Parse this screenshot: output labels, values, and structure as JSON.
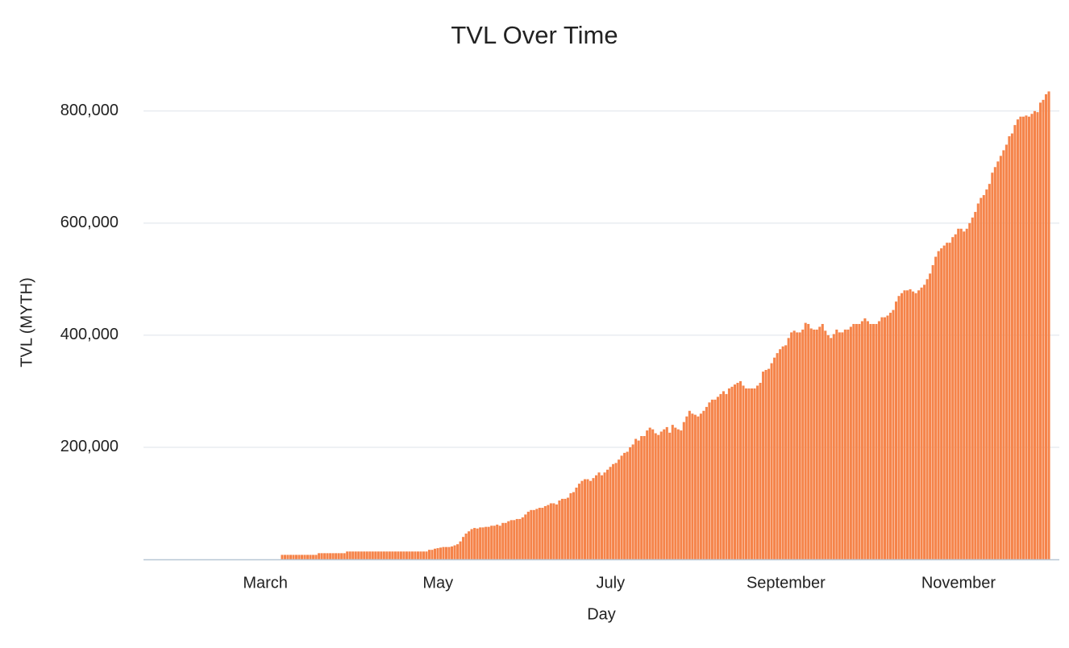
{
  "chart_data": {
    "type": "bar",
    "title": "TVL Over Time",
    "x_label": "Day",
    "y_label": "TVL (MYTH)",
    "color": "#f5844a",
    "grid": true,
    "ylim": [
      0,
      850000
    ],
    "yticks": [
      {
        "value": 200000,
        "label": "200,000"
      },
      {
        "value": 400000,
        "label": "400,000"
      },
      {
        "value": 600000,
        "label": "600,000"
      },
      {
        "value": 800000,
        "label": "800,000"
      }
    ],
    "categories": [
      null,
      null,
      null,
      null,
      null,
      null,
      null,
      null,
      null,
      null,
      null,
      null,
      null,
      null,
      null,
      null,
      null,
      null,
      null,
      null,
      null,
      null,
      null,
      null,
      null,
      null,
      null,
      null,
      null,
      null,
      null,
      null,
      null,
      null,
      null,
      null,
      null,
      null,
      null,
      null,
      null,
      null,
      "March",
      null,
      null,
      null,
      null,
      null,
      null,
      null,
      null,
      null,
      null,
      null,
      null,
      null,
      null,
      null,
      null,
      null,
      null,
      null,
      null,
      null,
      null,
      null,
      null,
      null,
      null,
      null,
      null,
      null,
      null,
      null,
      null,
      null,
      null,
      null,
      null,
      null,
      null,
      null,
      null,
      null,
      null,
      null,
      null,
      null,
      null,
      null,
      null,
      null,
      null,
      null,
      null,
      null,
      null,
      null,
      null,
      null,
      null,
      null,
      null,
      "May",
      null,
      null,
      null,
      null,
      null,
      null,
      null,
      null,
      null,
      null,
      null,
      null,
      null,
      null,
      null,
      null,
      null,
      null,
      null,
      null,
      null,
      null,
      null,
      null,
      null,
      null,
      null,
      null,
      null,
      null,
      null,
      null,
      null,
      null,
      null,
      null,
      null,
      null,
      null,
      null,
      null,
      null,
      null,
      null,
      null,
      null,
      null,
      null,
      null,
      null,
      null,
      null,
      null,
      null,
      null,
      null,
      null,
      null,
      null,
      null,
      "July",
      null,
      null,
      null,
      null,
      null,
      null,
      null,
      null,
      null,
      null,
      null,
      null,
      null,
      null,
      null,
      null,
      null,
      null,
      null,
      null,
      null,
      null,
      null,
      null,
      null,
      null,
      null,
      null,
      null,
      null,
      null,
      null,
      null,
      null,
      null,
      null,
      null,
      null,
      null,
      null,
      null,
      null,
      null,
      null,
      null,
      null,
      null,
      null,
      null,
      null,
      null,
      null,
      null,
      null,
      null,
      null,
      null,
      null,
      null,
      null,
      null,
      "September",
      null,
      null,
      null,
      null,
      null,
      null,
      null,
      null,
      null,
      null,
      null,
      null,
      null,
      null,
      null,
      null,
      null,
      null,
      null,
      null,
      null,
      null,
      null,
      null,
      null,
      null,
      null,
      null,
      null,
      null,
      null,
      null,
      null,
      null,
      null,
      null,
      null,
      null,
      null,
      null,
      null,
      null,
      null,
      null,
      null,
      null,
      null,
      null,
      null,
      null,
      null,
      null,
      null,
      null,
      null,
      null,
      null,
      null,
      null,
      null,
      "November",
      null,
      null,
      null,
      null,
      null,
      null,
      null,
      null,
      null,
      null,
      null,
      null,
      null,
      null,
      null,
      null,
      null,
      null,
      null,
      null,
      null,
      null,
      null,
      null,
      null,
      null,
      null,
      null,
      null,
      null,
      null,
      null
    ],
    "values": [
      null,
      null,
      null,
      null,
      null,
      null,
      null,
      null,
      null,
      null,
      null,
      null,
      null,
      null,
      null,
      null,
      null,
      null,
      null,
      null,
      null,
      null,
      null,
      null,
      null,
      null,
      null,
      null,
      null,
      null,
      null,
      null,
      null,
      null,
      null,
      null,
      null,
      null,
      null,
      null,
      null,
      null,
      null,
      null,
      null,
      null,
      null,
      null,
      8000,
      8000,
      8000,
      8000,
      8000,
      8000,
      8000,
      8000,
      8000,
      8000,
      8000,
      8000,
      8000,
      11000,
      11000,
      11000,
      11000,
      11000,
      11000,
      11000,
      11000,
      11000,
      11000,
      14000,
      14000,
      14000,
      14000,
      14000,
      14000,
      14000,
      14000,
      14000,
      14000,
      14000,
      14000,
      14000,
      14000,
      14000,
      14000,
      14000,
      14000,
      14000,
      14000,
      14000,
      14000,
      14000,
      14000,
      14000,
      14000,
      14000,
      14000,
      14000,
      17000,
      17000,
      19000,
      20000,
      21000,
      22000,
      22000,
      22000,
      23000,
      25000,
      27000,
      32000,
      40000,
      46000,
      50000,
      54000,
      56000,
      55000,
      57000,
      57000,
      58000,
      58000,
      60000,
      60000,
      62000,
      60000,
      65000,
      65000,
      68000,
      70000,
      70000,
      72000,
      72000,
      75000,
      80000,
      85000,
      88000,
      88000,
      90000,
      92000,
      92000,
      95000,
      97000,
      100000,
      100000,
      98000,
      105000,
      108000,
      108000,
      110000,
      118000,
      120000,
      128000,
      135000,
      140000,
      143000,
      143000,
      140000,
      145000,
      150000,
      155000,
      150000,
      155000,
      160000,
      165000,
      170000,
      172000,
      178000,
      185000,
      190000,
      192000,
      200000,
      205000,
      215000,
      212000,
      220000,
      220000,
      230000,
      235000,
      232000,
      225000,
      222000,
      228000,
      232000,
      236000,
      226000,
      240000,
      235000,
      232000,
      230000,
      245000,
      255000,
      265000,
      260000,
      258000,
      255000,
      260000,
      265000,
      272000,
      280000,
      285000,
      285000,
      290000,
      295000,
      300000,
      295000,
      305000,
      308000,
      312000,
      315000,
      318000,
      310000,
      305000,
      305000,
      305000,
      305000,
      310000,
      315000,
      335000,
      338000,
      340000,
      350000,
      360000,
      368000,
      375000,
      380000,
      382000,
      395000,
      405000,
      408000,
      405000,
      405000,
      410000,
      422000,
      420000,
      412000,
      410000,
      410000,
      415000,
      420000,
      408000,
      400000,
      395000,
      402000,
      410000,
      405000,
      405000,
      410000,
      410000,
      415000,
      420000,
      420000,
      420000,
      425000,
      430000,
      425000,
      420000,
      420000,
      420000,
      425000,
      432000,
      432000,
      435000,
      440000,
      445000,
      460000,
      470000,
      475000,
      480000,
      480000,
      482000,
      478000,
      475000,
      480000,
      485000,
      490000,
      500000,
      510000,
      525000,
      540000,
      550000,
      555000,
      560000,
      565000,
      565000,
      575000,
      580000,
      590000,
      590000,
      585000,
      590000,
      600000,
      610000,
      620000,
      635000,
      645000,
      650000,
      660000,
      670000,
      690000,
      700000,
      710000,
      720000,
      730000,
      740000,
      755000,
      760000,
      775000,
      785000,
      790000,
      790000,
      792000,
      790000,
      795000,
      800000,
      798000,
      815000,
      820000,
      830000,
      835000
    ]
  }
}
